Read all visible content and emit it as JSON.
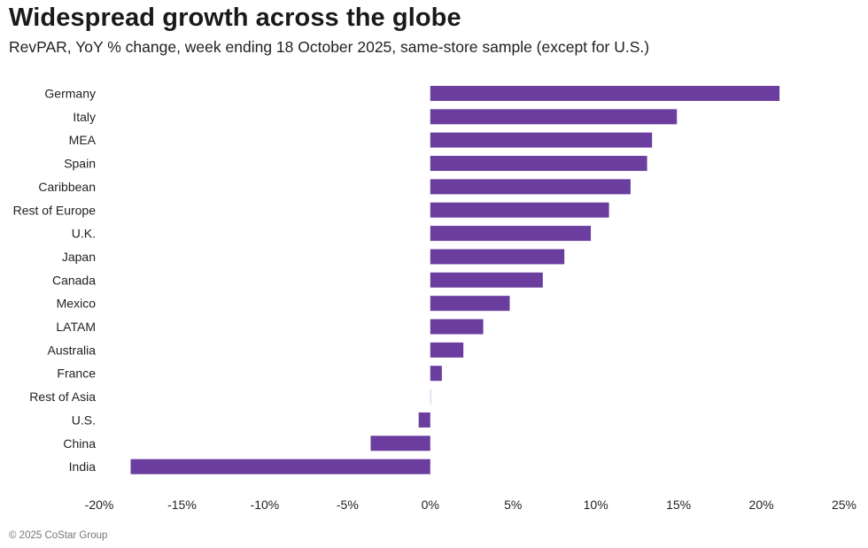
{
  "chart_data": {
    "type": "bar",
    "orientation": "horizontal",
    "title": "Widespread growth across the globe",
    "subtitle": "RevPAR, YoY % change, week ending 18 October 2025, same-store sample (except for U.S.)",
    "categories": [
      "Germany",
      "Italy",
      "MEA",
      "Spain",
      "Caribbean",
      "Rest of Europe",
      "U.K.",
      "Japan",
      "Canada",
      "Mexico",
      "LATAM",
      "Australia",
      "France",
      "Rest of Asia",
      "U.S.",
      "China",
      "India"
    ],
    "values": [
      21.1,
      14.9,
      13.4,
      13.1,
      12.1,
      10.8,
      9.7,
      8.1,
      6.8,
      4.8,
      3.2,
      2.0,
      0.7,
      0.0,
      -0.7,
      -3.6,
      -18.1
    ],
    "xlim": [
      -20,
      25
    ],
    "xticks": [
      -20,
      -15,
      -10,
      -5,
      0,
      5,
      10,
      15,
      20,
      25
    ],
    "xtick_labels": [
      "-20%",
      "-15%",
      "-10%",
      "-5%",
      "0%",
      "5%",
      "10%",
      "15%",
      "20%",
      "25%"
    ],
    "xlabel": "",
    "ylabel": "",
    "grid": false,
    "bar_color": "#6a3d9f"
  },
  "footer": {
    "copyright": "© 2025 CoStar Group"
  }
}
